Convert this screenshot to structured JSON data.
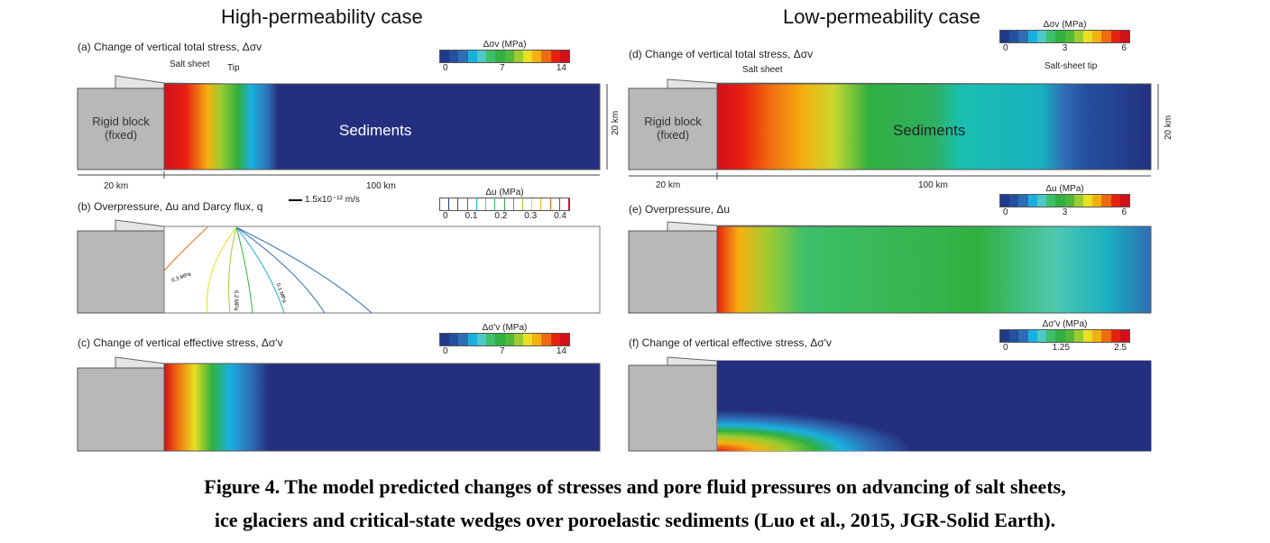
{
  "titles": {
    "left": "High-permeability case",
    "right": "Low-permeability case"
  },
  "panels": {
    "a": {
      "label": "(a) Change of vertical total stress, Δσv",
      "legend_title": "Δσv (MPa)",
      "ticks": [
        "0",
        "7",
        "14"
      ],
      "salt": "Salt sheet",
      "tip": "Tip",
      "block": "Rigid block (fixed)",
      "sediments": "Sediments",
      "depth": "20 km",
      "w1": "20 km",
      "w2": "100 km"
    },
    "b": {
      "label": "(b) Overpressure, Δu and Darcy flux, q",
      "flux": "1.5x10⁻¹² m/s",
      "legend_title": "Δu (MPa)",
      "ticks": [
        "0",
        "0.1",
        "0.2",
        "0.3",
        "0.4"
      ],
      "contours": [
        "0.3 MPa",
        "0.2 MPa",
        "0.1 MPa"
      ]
    },
    "c": {
      "label": "(c) Change of vertical effective stress, Δσ'v",
      "legend_title": "Δσ'v (MPa)",
      "ticks": [
        "0",
        "7",
        "14"
      ]
    },
    "d": {
      "label": "(d) Change of vertical total stress, Δσv",
      "legend_title": "Δσv (MPa)",
      "ticks": [
        "0",
        "3",
        "6"
      ],
      "salt": "Salt sheet",
      "tip": "Salt-sheet tip",
      "block": "Rigid block (fixed)",
      "sediments": "Sediments",
      "depth": "20 km",
      "w1": "20 km",
      "w2": "100 km"
    },
    "e": {
      "label": "(e) Overpressure, Δu",
      "legend_title": "Δu (MPa)",
      "ticks": [
        "0",
        "3",
        "6"
      ]
    },
    "f": {
      "label": "(f) Change of vertical effective stress, Δσ'v",
      "legend_title": "Δσ'v (MPa)",
      "ticks": [
        "0",
        "1.25",
        "2.5"
      ]
    }
  },
  "colormap": [
    "#1f3a8a",
    "#2450a0",
    "#2f6db5",
    "#19b0e0",
    "#4fc8c8",
    "#3fbf6a",
    "#30b040",
    "#52b83a",
    "#9ccc30",
    "#e8e020",
    "#f5b010",
    "#f06a10",
    "#e82010",
    "#d0101a"
  ],
  "caption": [
    "Figure 4. The model predicted changes of stresses and pore fluid pressures on advancing of salt sheets,",
    "ice glaciers and critical-state wedges over poroelastic sediments (Luo et al., 2015, JGR-Solid Earth)."
  ]
}
